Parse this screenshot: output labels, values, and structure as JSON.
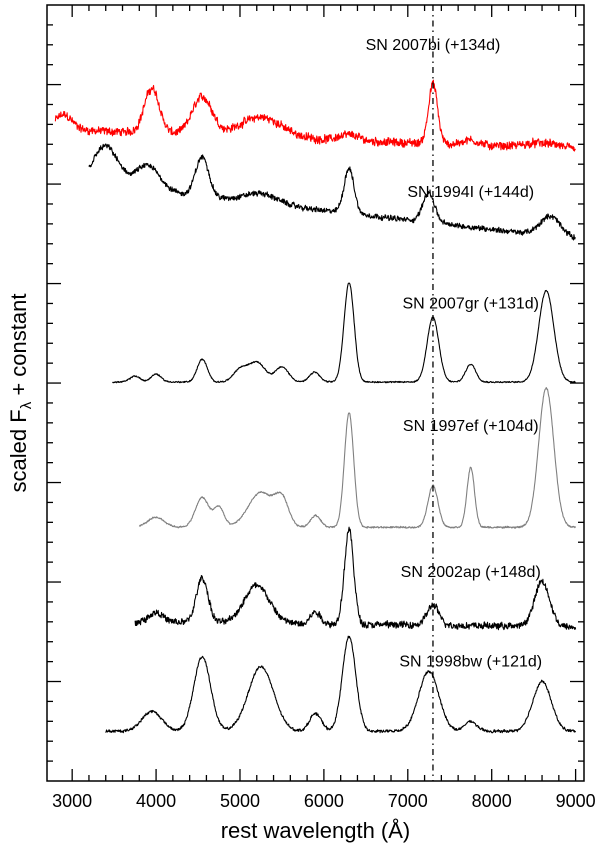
{
  "chart_data": {
    "type": "line",
    "xlabel": "rest wavelength (Å)",
    "ylabel_main": "scaled F",
    "ylabel_sub": "λ",
    "ylabel_rest": " + constant",
    "xlim": [
      2700,
      9100
    ],
    "ylim": [
      0,
      7.8
    ],
    "x_ticks": [
      3000,
      4000,
      5000,
      6000,
      7000,
      8000,
      9000
    ],
    "x_tick_labels": [
      "3000",
      "4000",
      "5000",
      "6000",
      "7000",
      "8000",
      "9000"
    ],
    "y_ticks": [
      1,
      2,
      3,
      4,
      5,
      6,
      7
    ],
    "reference_line_x": 7300,
    "series": [
      {
        "name": "SN 2007bi (+134d)",
        "color": "#ff0000",
        "x_range": [
          2800,
          9000
        ],
        "offset": 6.1,
        "label_x": 7300,
        "label_y": 7.35,
        "features": [
          [
            2900,
            0.15,
            100
          ],
          [
            3950,
            0.45,
            90
          ],
          [
            4550,
            0.38,
            120
          ],
          [
            5250,
            0.2,
            250
          ],
          [
            6300,
            0.06,
            120
          ],
          [
            7300,
            0.6,
            55
          ],
          [
            7750,
            0.05,
            100
          ],
          [
            8600,
            0.05,
            200
          ]
        ],
        "continuum": [
          0.45,
          -0.2
        ],
        "noise": 0.06
      },
      {
        "name": "SN 1994I (+144d)",
        "color": "#000000",
        "x_range": [
          3200,
          9000
        ],
        "offset": 5.2,
        "label_x": 7750,
        "label_y": 5.87,
        "features": [
          [
            3400,
            0.4,
            150
          ],
          [
            3900,
            0.25,
            150
          ],
          [
            4550,
            0.4,
            80
          ],
          [
            5250,
            0.1,
            200
          ],
          [
            6300,
            0.45,
            60
          ],
          [
            7250,
            0.3,
            70
          ],
          [
            8700,
            0.2,
            120
          ]
        ],
        "continuum": [
          0.8,
          -0.55
        ],
        "noise": 0.04
      },
      {
        "name": "SN 2007gr (+131d)",
        "color": "#000000",
        "x_range": [
          3480,
          9000
        ],
        "offset": 3.95,
        "label_x": 7750,
        "label_y": 4.75,
        "features": [
          [
            3750,
            0.06,
            60
          ],
          [
            4000,
            0.08,
            60
          ],
          [
            4550,
            0.23,
            60
          ],
          [
            5000,
            0.12,
            80
          ],
          [
            5200,
            0.2,
            100
          ],
          [
            5500,
            0.15,
            80
          ],
          [
            5890,
            0.1,
            60
          ],
          [
            6300,
            1.0,
            60
          ],
          [
            7300,
            0.65,
            70
          ],
          [
            7750,
            0.18,
            60
          ],
          [
            8650,
            0.92,
            90
          ]
        ],
        "continuum": [
          0.06,
          0.0
        ],
        "noise": 0.01
      },
      {
        "name": "SN 1997ef (+104d)",
        "color": "#808080",
        "x_range": [
          3800,
          9000
        ],
        "offset": 2.5,
        "label_x": 7750,
        "label_y": 3.52,
        "features": [
          [
            4000,
            0.1,
            100
          ],
          [
            4550,
            0.3,
            80
          ],
          [
            4750,
            0.2,
            60
          ],
          [
            5250,
            0.35,
            150
          ],
          [
            5500,
            0.25,
            80
          ],
          [
            5900,
            0.12,
            60
          ],
          [
            6300,
            1.15,
            55
          ],
          [
            7300,
            0.42,
            60
          ],
          [
            7750,
            0.6,
            45
          ],
          [
            8650,
            1.4,
            90
          ]
        ],
        "continuum": [
          0.05,
          0.0
        ],
        "noise": 0.012
      },
      {
        "name": "SN 2002ap (+148d)",
        "color": "#000000",
        "x_range": [
          3750,
          9000
        ],
        "offset": 1.45,
        "label_x": 7750,
        "label_y": 2.05,
        "features": [
          [
            4000,
            0.1,
            80
          ],
          [
            4550,
            0.45,
            70
          ],
          [
            5200,
            0.38,
            150
          ],
          [
            5900,
            0.12,
            60
          ],
          [
            6300,
            0.95,
            55
          ],
          [
            7300,
            0.2,
            70
          ],
          [
            8600,
            0.45,
            90
          ]
        ],
        "continuum": [
          0.15,
          -0.05
        ],
        "noise": 0.05
      },
      {
        "name": "SN 1998bw (+121d)",
        "color": "#000000",
        "x_range": [
          3400,
          9000
        ],
        "offset": 0.45,
        "label_x": 7750,
        "label_y": 1.15,
        "features": [
          [
            3950,
            0.2,
            120
          ],
          [
            4550,
            0.75,
            100
          ],
          [
            5250,
            0.65,
            150
          ],
          [
            5900,
            0.18,
            70
          ],
          [
            6300,
            0.95,
            80
          ],
          [
            7250,
            0.6,
            120
          ],
          [
            7750,
            0.1,
            70
          ],
          [
            8600,
            0.5,
            110
          ]
        ],
        "continuum": [
          0.05,
          0.0
        ],
        "noise": 0.02
      }
    ]
  }
}
